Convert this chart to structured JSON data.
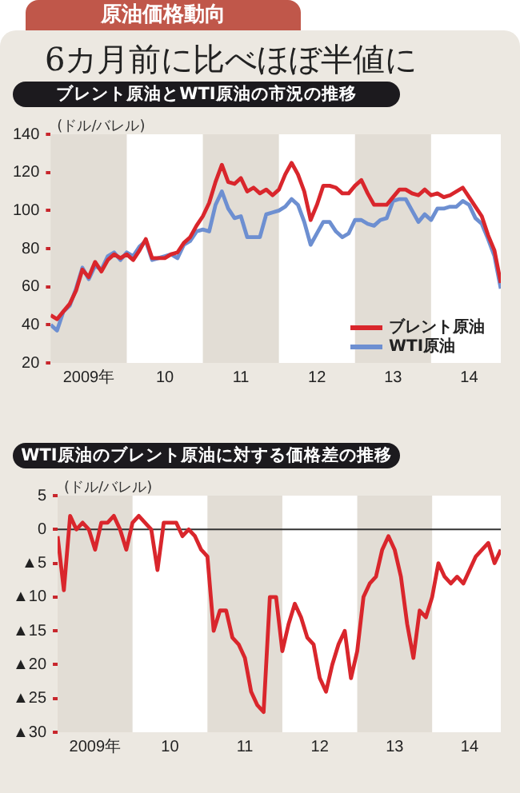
{
  "chart_data": [
    {
      "type": "line",
      "title": "ブレント原油とWTI原油の市況の推移",
      "annotations": [
        "原油価格動向",
        "6カ月前に比べほぼ半値に"
      ],
      "ylabel": "(ドル/バレル)",
      "x": [
        "2009-01",
        "2009-02",
        "2009-03",
        "2009-04",
        "2009-05",
        "2009-06",
        "2009-07",
        "2009-08",
        "2009-09",
        "2009-10",
        "2009-11",
        "2009-12",
        "2010-01",
        "2010-02",
        "2010-03",
        "2010-04",
        "2010-05",
        "2010-06",
        "2010-07",
        "2010-08",
        "2010-09",
        "2010-10",
        "2010-11",
        "2010-12",
        "2011-01",
        "2011-02",
        "2011-03",
        "2011-04",
        "2011-05",
        "2011-06",
        "2011-07",
        "2011-08",
        "2011-09",
        "2011-10",
        "2011-11",
        "2011-12",
        "2012-01",
        "2012-02",
        "2012-03",
        "2012-04",
        "2012-05",
        "2012-06",
        "2012-07",
        "2012-08",
        "2012-09",
        "2012-10",
        "2012-11",
        "2012-12",
        "2013-01",
        "2013-02",
        "2013-03",
        "2013-04",
        "2013-05",
        "2013-06",
        "2013-07",
        "2013-08",
        "2013-09",
        "2013-10",
        "2013-11",
        "2013-12",
        "2014-01",
        "2014-02",
        "2014-03",
        "2014-04",
        "2014-05",
        "2014-06",
        "2014-07",
        "2014-08",
        "2014-09",
        "2014-10",
        "2014-11",
        "2014-12"
      ],
      "series": [
        {
          "name": "ブレント原油",
          "color": "#d9262c",
          "values": [
            45,
            43,
            47,
            51,
            58,
            69,
            65,
            73,
            68,
            74,
            77,
            75,
            77,
            74,
            79,
            85,
            75,
            75,
            75,
            77,
            78,
            83,
            86,
            92,
            97,
            104,
            115,
            124,
            115,
            114,
            117,
            110,
            112,
            109,
            111,
            108,
            111,
            119,
            125,
            119,
            110,
            95,
            103,
            113,
            113,
            112,
            109,
            109,
            113,
            116,
            109,
            103,
            103,
            103,
            107,
            111,
            111,
            109,
            108,
            111,
            108,
            109,
            107,
            108,
            110,
            112,
            107,
            102,
            97,
            87,
            79,
            62
          ]
        },
        {
          "name": "WTI原油",
          "color": "#6d8fd1",
          "values": [
            40,
            37,
            47,
            50,
            59,
            70,
            64,
            71,
            69,
            76,
            78,
            74,
            78,
            76,
            81,
            84,
            74,
            75,
            76,
            77,
            75,
            82,
            84,
            89,
            90,
            89,
            103,
            110,
            101,
            96,
            97,
            86,
            86,
            86,
            98,
            99,
            100,
            102,
            106,
            103,
            94,
            82,
            88,
            94,
            94,
            89,
            86,
            88,
            95,
            95,
            93,
            92,
            95,
            96,
            105,
            106,
            106,
            100,
            94,
            98,
            95,
            101,
            101,
            102,
            102,
            105,
            103,
            96,
            93,
            85,
            76,
            59
          ]
        }
      ],
      "xlim": [
        "2009-01",
        "2014-12"
      ],
      "xticks": [
        {
          "value": "2009-07",
          "label": "2009年"
        },
        {
          "value": "2010-07",
          "label": "10"
        },
        {
          "value": "2011-07",
          "label": "11"
        },
        {
          "value": "2012-07",
          "label": "12"
        },
        {
          "value": "2013-07",
          "label": "13"
        },
        {
          "value": "2014-07",
          "label": "14"
        }
      ],
      "ylim": [
        20,
        140
      ],
      "yticks": [
        20,
        40,
        60,
        80,
        100,
        120,
        140
      ],
      "bands": [
        {
          "axis": "x",
          "from": "2010-01",
          "to": "2011-01",
          "color": "#ffffff"
        },
        {
          "axis": "x",
          "from": "2012-01",
          "to": "2013-01",
          "color": "#ffffff"
        },
        {
          "axis": "x",
          "from": "2014-01",
          "to": "2014-12",
          "color": "#ffffff"
        }
      ],
      "legend": "bottom right",
      "grid": false
    },
    {
      "type": "line",
      "title": "WTI原油のブレント原油に対する価格差の推移",
      "ylabel": "(ドル/バレル)",
      "x": [
        "2009-01",
        "2009-02",
        "2009-03",
        "2009-04",
        "2009-05",
        "2009-06",
        "2009-07",
        "2009-08",
        "2009-09",
        "2009-10",
        "2009-11",
        "2009-12",
        "2010-01",
        "2010-02",
        "2010-03",
        "2010-04",
        "2010-05",
        "2010-06",
        "2010-07",
        "2010-08",
        "2010-09",
        "2010-10",
        "2010-11",
        "2010-12",
        "2011-01",
        "2011-02",
        "2011-03",
        "2011-04",
        "2011-05",
        "2011-06",
        "2011-07",
        "2011-08",
        "2011-09",
        "2011-10",
        "2011-11",
        "2011-12",
        "2012-01",
        "2012-02",
        "2012-03",
        "2012-04",
        "2012-05",
        "2012-06",
        "2012-07",
        "2012-08",
        "2012-09",
        "2012-10",
        "2012-11",
        "2012-12",
        "2013-01",
        "2013-02",
        "2013-03",
        "2013-04",
        "2013-05",
        "2013-06",
        "2013-07",
        "2013-08",
        "2013-09",
        "2013-10",
        "2013-11",
        "2013-12",
        "2014-01",
        "2014-02",
        "2014-03",
        "2014-04",
        "2014-05",
        "2014-06",
        "2014-07",
        "2014-08",
        "2014-09",
        "2014-10",
        "2014-11",
        "2014-12"
      ],
      "series": [
        {
          "color": "#d9262c",
          "values": [
            -1,
            -9,
            2,
            0,
            1,
            0,
            -3,
            1,
            1,
            2,
            0,
            -3,
            1,
            2,
            1,
            0,
            -6,
            1,
            1,
            1,
            -1,
            0,
            -1,
            -3,
            -4,
            -15,
            -12,
            -12,
            -16,
            -17,
            -19,
            -24,
            -26,
            -27,
            -10,
            -10,
            -18,
            -14,
            -11,
            -13,
            -16,
            -17,
            -22,
            -24,
            -20,
            -17,
            -15,
            -22,
            -18,
            -10,
            -8,
            -7,
            -3,
            -1,
            -3,
            -7,
            -14,
            -19,
            -12,
            -13,
            -10,
            -5,
            -7,
            -8,
            -7,
            -8,
            -6,
            -4,
            -3,
            -2,
            -5,
            -3
          ]
        }
      ],
      "xlim": [
        "2009-01",
        "2014-12"
      ],
      "xticks": [
        {
          "value": "2009-07",
          "label": "2009年"
        },
        {
          "value": "2010-07",
          "label": "10"
        },
        {
          "value": "2011-07",
          "label": "11"
        },
        {
          "value": "2012-07",
          "label": "12"
        },
        {
          "value": "2013-07",
          "label": "13"
        },
        {
          "value": "2014-07",
          "label": "14"
        }
      ],
      "ylim": [
        -30,
        5
      ],
      "yticks": [
        {
          "value": -30,
          "label": "▲30"
        },
        {
          "value": -25,
          "label": "▲25"
        },
        {
          "value": -20,
          "label": "▲20"
        },
        {
          "value": -15,
          "label": "▲15"
        },
        {
          "value": -10,
          "label": "▲10"
        },
        {
          "value": -5,
          "label": "▲5"
        },
        0,
        5
      ],
      "bands": [
        {
          "axis": "x",
          "from": "2010-01",
          "to": "2011-01",
          "color": "#ffffff"
        },
        {
          "axis": "x",
          "from": "2012-01",
          "to": "2013-01",
          "color": "#ffffff"
        },
        {
          "axis": "x",
          "from": "2014-01",
          "to": "2014-12",
          "color": "#ffffff"
        }
      ],
      "ref_lines": [
        {
          "axis": "y",
          "value": 0,
          "color": "#333333"
        }
      ],
      "legend": false,
      "grid": false
    }
  ]
}
